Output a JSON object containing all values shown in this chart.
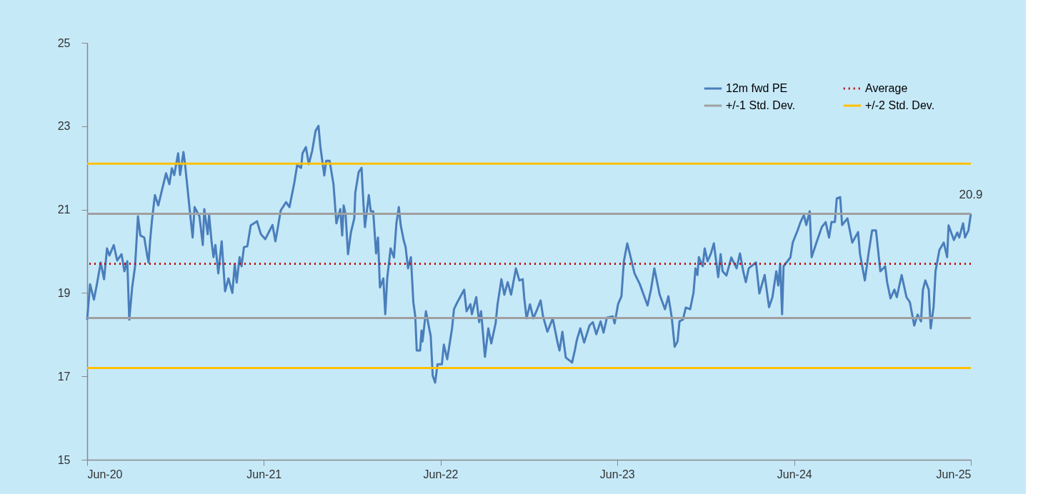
{
  "chart_data": {
    "type": "line",
    "xlim": [
      "2020-06-01",
      "2025-06-01"
    ],
    "xticks": [
      {
        "value": "2020-06-01",
        "label": "Jun-20"
      },
      {
        "value": "2021-06-01",
        "label": "Jun-21"
      },
      {
        "value": "2022-06-01",
        "label": "Jun-22"
      },
      {
        "value": "2023-06-01",
        "label": "Jun-23"
      },
      {
        "value": "2024-06-01",
        "label": "Jun-24"
      },
      {
        "value": "2025-06-01",
        "label": "Jun-25"
      }
    ],
    "ylim": [
      15,
      25
    ],
    "yticks": [
      15,
      17,
      19,
      21,
      23,
      25
    ],
    "legend": "top right",
    "series": [
      {
        "name": "12m fwd PE",
        "color": "#4a7ebb",
        "line_style": "solid",
        "x": [
          "2020-06-01",
          "2020-06-07",
          "2020-06-15",
          "2020-06-21",
          "2020-06-29",
          "2020-07-06",
          "2020-07-12",
          "2020-07-17",
          "2020-07-26",
          "2020-08-02",
          "2020-08-11",
          "2020-08-17",
          "2020-08-23",
          "2020-08-27",
          "2020-09-02",
          "2020-09-08",
          "2020-09-14",
          "2020-09-19",
          "2020-09-27",
          "2020-10-03",
          "2020-10-06",
          "2020-10-09",
          "2020-10-13",
          "2020-10-19",
          "2020-10-26",
          "2020-11-02",
          "2020-11-11",
          "2020-11-18",
          "2020-11-23",
          "2020-11-28",
          "2020-12-06",
          "2020-12-10",
          "2020-12-17",
          "2020-12-20",
          "2020-12-25",
          "2020-12-30",
          "2021-01-05",
          "2021-01-09",
          "2021-01-19",
          "2021-01-26",
          "2021-01-29",
          "2021-02-05",
          "2021-02-08",
          "2021-02-13",
          "2021-02-17",
          "2021-02-21",
          "2021-02-27",
          "2021-03-06",
          "2021-03-13",
          "2021-03-20",
          "2021-03-28",
          "2021-04-02",
          "2021-04-06",
          "2021-04-12",
          "2021-04-16",
          "2021-04-21",
          "2021-04-28",
          "2021-05-05",
          "2021-05-18",
          "2021-05-26",
          "2021-06-04",
          "2021-06-11",
          "2021-06-19",
          "2021-06-25",
          "2021-06-29",
          "2021-07-06",
          "2021-07-17",
          "2021-07-24",
          "2021-08-03",
          "2021-08-09",
          "2021-08-17",
          "2021-08-20",
          "2021-08-27",
          "2021-09-02",
          "2021-09-09",
          "2021-09-16",
          "2021-09-22",
          "2021-09-26",
          "2021-10-04",
          "2021-10-08",
          "2021-10-15",
          "2021-10-23",
          "2021-10-29",
          "2021-11-06",
          "2021-11-10",
          "2021-11-13",
          "2021-11-17",
          "2021-11-22",
          "2021-11-28",
          "2021-12-05",
          "2021-12-07",
          "2021-12-14",
          "2021-12-20",
          "2021-12-24",
          "2021-12-27",
          "2022-01-04",
          "2022-01-08",
          "2022-01-13",
          "2022-01-19",
          "2022-01-23",
          "2022-01-27",
          "2022-02-03",
          "2022-02-07",
          "2022-02-11",
          "2022-02-18",
          "2022-02-25",
          "2022-03-02",
          "2022-03-07",
          "2022-03-11",
          "2022-03-17",
          "2022-03-21",
          "2022-03-26",
          "2022-04-01",
          "2022-04-06",
          "2022-04-10",
          "2022-04-13",
          "2022-04-20",
          "2022-04-23",
          "2022-04-25",
          "2022-05-02",
          "2022-05-12",
          "2022-05-16",
          "2022-05-21",
          "2022-05-26",
          "2022-06-04",
          "2022-06-08",
          "2022-06-15",
          "2022-06-25",
          "2022-06-29",
          "2022-07-06",
          "2022-07-20",
          "2022-07-25",
          "2022-08-02",
          "2022-08-05",
          "2022-08-14",
          "2022-08-20",
          "2022-08-24",
          "2022-09-01",
          "2022-09-08",
          "2022-09-14",
          "2022-09-23",
          "2022-09-27",
          "2022-10-05",
          "2022-10-11",
          "2022-10-18",
          "2022-10-25",
          "2022-11-04",
          "2022-11-11",
          "2022-11-18",
          "2022-11-21",
          "2022-11-26",
          "2022-12-03",
          "2022-12-10",
          "2022-12-17",
          "2022-12-25",
          "2022-12-30",
          "2023-01-08",
          "2023-01-19",
          "2023-01-29",
          "2023-02-02",
          "2023-02-08",
          "2023-02-15",
          "2023-02-25",
          "2023-02-28",
          "2023-03-06",
          "2023-03-10",
          "2023-03-17",
          "2023-03-25",
          "2023-04-05",
          "2023-04-12",
          "2023-04-19",
          "2023-04-28",
          "2023-05-04",
          "2023-05-11",
          "2023-05-23",
          "2023-05-27",
          "2023-06-03",
          "2023-06-10",
          "2023-06-15",
          "2023-06-22",
          "2023-06-29",
          "2023-07-07",
          "2023-07-18",
          "2023-08-03",
          "2023-08-10",
          "2023-08-17",
          "2023-08-28",
          "2023-09-08",
          "2023-09-15",
          "2023-09-22",
          "2023-09-28",
          "2023-10-04",
          "2023-10-08",
          "2023-10-15",
          "2023-10-21",
          "2023-10-30",
          "2023-11-06",
          "2023-11-10",
          "2023-11-14",
          "2023-11-17",
          "2023-11-25",
          "2023-11-29",
          "2023-12-05",
          "2023-12-12",
          "2023-12-18",
          "2023-12-27",
          "2024-01-01",
          "2024-01-05",
          "2024-01-13",
          "2024-01-23",
          "2024-02-03",
          "2024-02-10",
          "2024-02-17",
          "2024-02-22",
          "2024-02-28",
          "2024-03-14",
          "2024-03-21",
          "2024-04-01",
          "2024-04-10",
          "2024-04-17",
          "2024-04-25",
          "2024-04-29",
          "2024-05-03",
          "2024-05-07",
          "2024-05-10",
          "2024-05-24",
          "2024-05-29",
          "2024-06-08",
          "2024-06-14",
          "2024-06-21",
          "2024-06-26",
          "2024-07-03",
          "2024-07-07",
          "2024-07-17",
          "2024-07-28",
          "2024-08-05",
          "2024-08-12",
          "2024-08-17",
          "2024-08-24",
          "2024-08-28",
          "2024-09-04",
          "2024-09-08",
          "2024-09-19",
          "2024-09-29",
          "2024-10-11",
          "2024-10-15",
          "2024-10-25",
          "2024-11-02",
          "2024-11-09",
          "2024-11-17",
          "2024-11-26",
          "2024-12-06",
          "2024-12-10",
          "2024-12-17",
          "2024-12-25",
          "2024-12-30",
          "2025-01-09",
          "2025-01-19",
          "2025-01-26",
          "2025-02-04",
          "2025-02-11",
          "2025-02-18",
          "2025-02-22",
          "2025-02-27",
          "2025-03-06",
          "2025-03-10",
          "2025-03-16",
          "2025-03-20",
          "2025-03-28",
          "2025-04-06",
          "2025-04-13",
          "2025-04-16",
          "2025-04-27",
          "2025-05-04",
          "2025-05-08",
          "2025-05-16",
          "2025-05-20",
          "2025-05-27",
          "2025-06-01"
        ],
        "values": [
          18.36,
          19.21,
          18.84,
          19.2,
          19.73,
          19.33,
          20.07,
          19.9,
          20.15,
          19.78,
          19.93,
          19.52,
          19.76,
          18.36,
          19.13,
          19.64,
          20.84,
          20.38,
          20.33,
          19.9,
          19.73,
          20.24,
          20.75,
          21.35,
          21.1,
          21.44,
          21.87,
          21.61,
          21.99,
          21.83,
          22.35,
          21.83,
          22.38,
          22.12,
          21.56,
          20.98,
          20.33,
          21.06,
          20.84,
          20.15,
          21.01,
          20.41,
          20.87,
          20.24,
          19.86,
          20.15,
          19.47,
          20.24,
          19.04,
          19.35,
          19.0,
          19.69,
          19.25,
          19.86,
          19.64,
          20.1,
          20.12,
          20.62,
          20.72,
          20.41,
          20.29,
          20.45,
          20.63,
          20.24,
          20.5,
          20.98,
          21.18,
          21.06,
          21.64,
          22.07,
          22.0,
          22.35,
          22.5,
          22.09,
          22.41,
          22.89,
          23.01,
          22.5,
          21.82,
          22.17,
          22.17,
          21.61,
          20.67,
          21.01,
          20.38,
          21.1,
          20.89,
          19.93,
          20.45,
          20.79,
          21.4,
          21.9,
          22.0,
          21.13,
          20.58,
          21.35,
          20.96,
          20.96,
          19.95,
          20.33,
          19.13,
          19.35,
          18.49,
          19.35,
          20.07,
          19.85,
          20.67,
          21.06,
          20.62,
          20.27,
          20.1,
          19.59,
          19.86,
          18.78,
          18.44,
          17.62,
          17.62,
          18.1,
          17.84,
          18.56,
          17.96,
          17.02,
          16.85,
          17.29,
          17.29,
          17.76,
          17.41,
          18.15,
          18.61,
          18.78,
          19.08,
          18.56,
          18.73,
          18.49,
          18.9,
          18.3,
          18.56,
          17.47,
          18.15,
          17.79,
          18.27,
          18.73,
          19.33,
          18.96,
          19.26,
          18.96,
          19.59,
          19.3,
          19.33,
          18.9,
          18.39,
          18.73,
          18.39,
          18.58,
          18.82,
          18.44,
          18.07,
          18.39,
          17.81,
          17.62,
          18.07,
          17.45,
          17.36,
          17.33,
          17.64,
          17.88,
          18.15,
          17.81,
          18.22,
          18.3,
          18.01,
          18.32,
          18.05,
          18.41,
          18.44,
          18.27,
          18.73,
          18.92,
          19.76,
          20.19,
          19.86,
          19.47,
          19.21,
          18.7,
          19.08,
          19.59,
          18.96,
          18.61,
          18.92,
          18.41,
          17.71,
          17.84,
          18.32,
          18.36,
          18.65,
          18.61,
          19.01,
          19.59,
          19.43,
          19.86,
          19.64,
          20.07,
          19.76,
          19.95,
          20.19,
          19.38,
          19.93,
          19.52,
          19.42,
          19.85,
          19.59,
          19.95,
          19.5,
          19.26,
          19.59,
          19.73,
          18.99,
          19.43,
          18.66,
          18.9,
          19.52,
          19.18,
          19.69,
          18.49,
          19.64,
          19.85,
          20.21,
          20.5,
          20.7,
          20.87,
          20.63,
          20.96,
          19.86,
          20.21,
          20.58,
          20.7,
          20.33,
          20.7,
          20.7,
          21.27,
          21.3,
          20.63,
          20.79,
          20.21,
          20.46,
          19.93,
          19.3,
          19.98,
          20.5,
          20.5,
          19.52,
          19.64,
          19.26,
          18.87,
          19.08,
          18.9,
          19.43,
          18.9,
          18.78,
          18.22,
          18.48,
          18.32,
          19.08,
          19.3,
          19.08,
          18.15,
          18.66,
          19.52,
          20.03,
          20.21,
          19.86,
          20.62,
          20.27,
          20.45,
          20.33,
          20.67,
          20.33,
          20.5,
          20.9
        ]
      }
    ],
    "ref_lines": [
      {
        "axis": "y",
        "value": 20.9,
        "label": "+/-1 Std. Dev.",
        "color": "#a0a0a0",
        "line_style": "solid"
      },
      {
        "axis": "y",
        "value": 19.7,
        "label": "Average",
        "color": "#c00000",
        "line_style": "dotted"
      },
      {
        "axis": "y",
        "value": 18.4,
        "label": null,
        "color": "#a0a0a0",
        "line_style": "solid"
      },
      {
        "axis": "y",
        "value": 22.1,
        "label": "+/-2 Std. Dev.",
        "color": "#ffc000",
        "line_style": "solid"
      },
      {
        "axis": "y",
        "value": 17.2,
        "label": null,
        "color": "#ffc000",
        "line_style": "solid"
      }
    ],
    "annotations": [
      {
        "text": "20.9",
        "x": "2025-06-01",
        "y": 20.9
      }
    ]
  }
}
